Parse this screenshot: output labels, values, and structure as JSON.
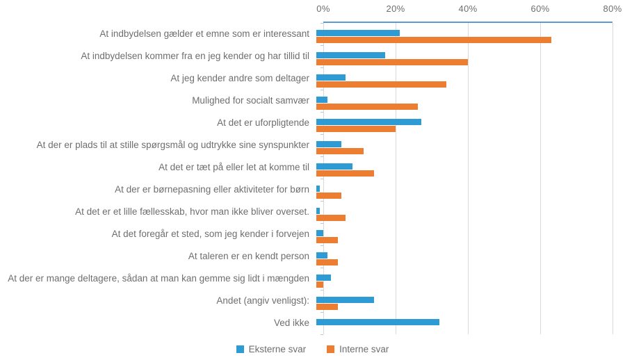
{
  "colors": {
    "external_series": "#2E9BD5",
    "internal_series": "#ED7D31",
    "plot_top_border": "#5B9BD5",
    "gridline": "#D9D9D9",
    "axis_tick": "#C6C6C6",
    "text": "#6E6E6E"
  },
  "chart_data": {
    "type": "bar",
    "orientation": "horizontal",
    "title": "",
    "xlabel": "",
    "ylabel": "",
    "x_axis": {
      "position": "top",
      "min": 0,
      "max": 80,
      "tick_values": [
        0,
        20,
        40,
        60,
        80
      ],
      "tick_labels": [
        "0%",
        "20%",
        "40%",
        "60%",
        "80%"
      ]
    },
    "grid": true,
    "legend_position": "bottom",
    "categories": [
      "At indbydelsen gælder et emne som er interessant",
      "At indbydelsen kommer fra en jeg kender og har tillid til",
      "At jeg kender andre som deltager",
      "Mulighed for socialt samvær",
      "At det er uforpligtende",
      "At der er plads til at stille spørgsmål og udtrykke sine synspunkter",
      "At det er tæt på eller let at komme til",
      "At der er børnepasning eller aktiviteter for børn",
      "At det er et lille fællesskab, hvor man ikke bliver overset.",
      "At det foregår et sted, som jeg kender i forvejen",
      "At taleren er en kendt person",
      "At der er mange deltagere, sådan at man kan gemme sig lidt i mængden",
      "Andet (angiv venligst):",
      "Ved ikke"
    ],
    "series": [
      {
        "name": "Eksterne svar",
        "color_key": "external_series",
        "values": [
          23,
          19,
          8,
          3,
          29,
          7,
          10,
          1,
          1,
          2,
          3,
          4,
          16,
          34
        ]
      },
      {
        "name": "Interne svar",
        "color_key": "internal_series",
        "values": [
          65,
          42,
          36,
          28,
          22,
          13,
          16,
          7,
          8,
          6,
          6,
          2,
          6,
          0
        ]
      }
    ]
  }
}
